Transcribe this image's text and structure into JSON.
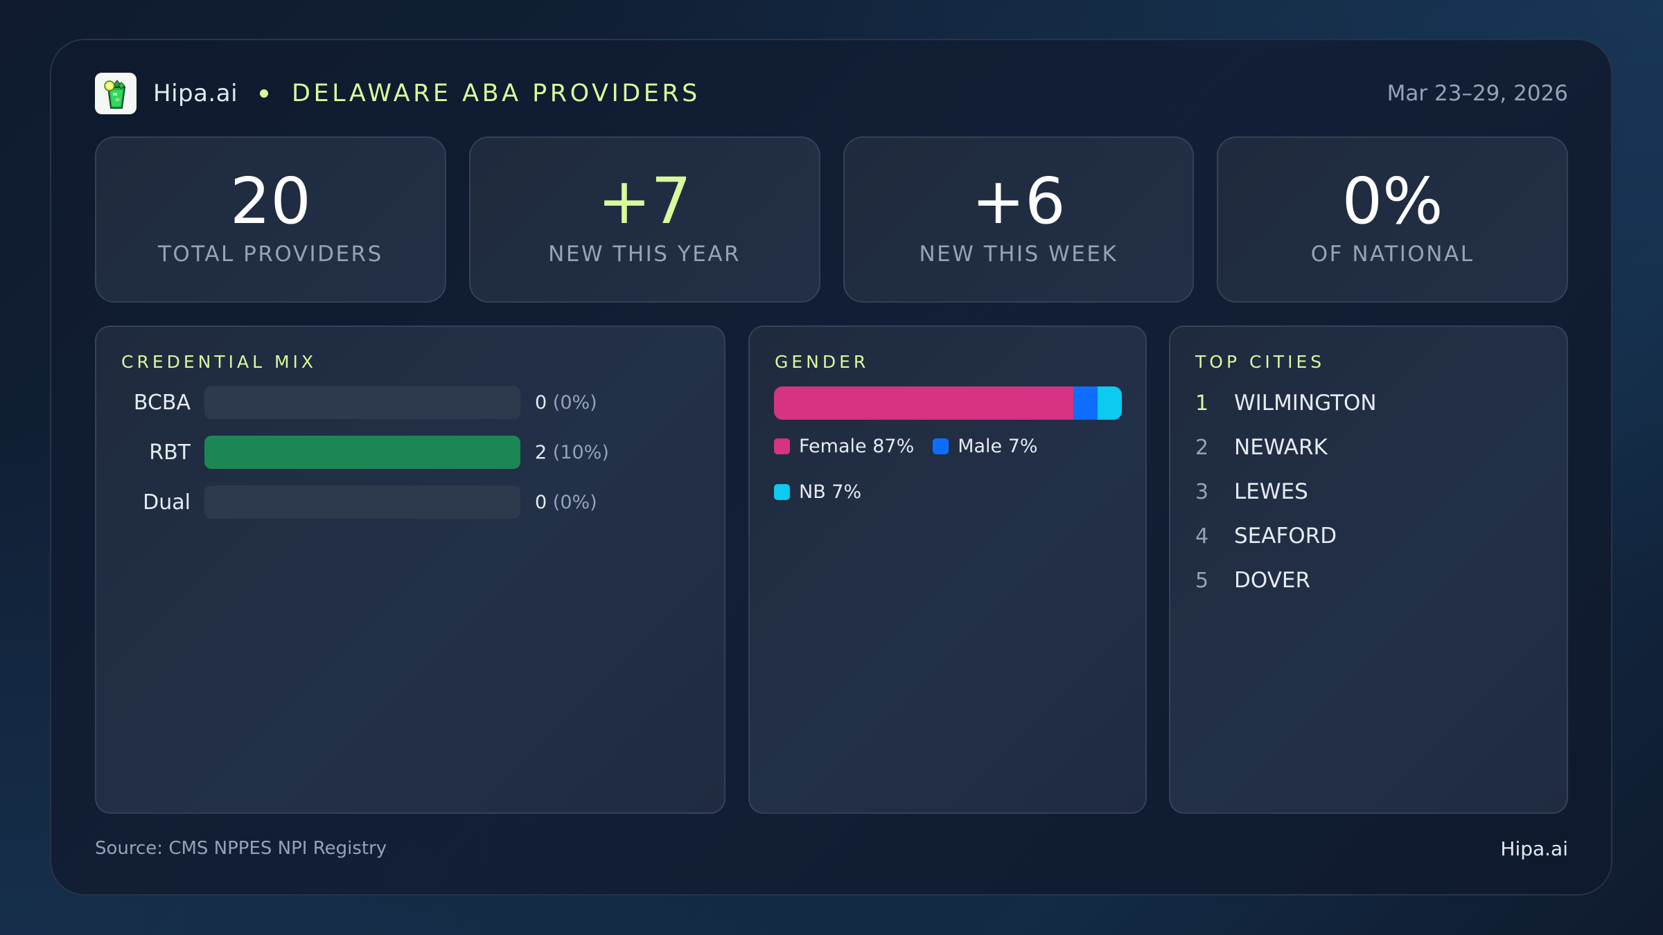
{
  "header": {
    "brand": "Hipa.ai",
    "title": "DELAWARE ABA PROVIDERS",
    "date_range": "Mar 23–29, 2026",
    "logo_icon": "mojito-drink-icon",
    "accent_color": "#d9f99d"
  },
  "stats": [
    {
      "value": "20",
      "label": "TOTAL PROVIDERS",
      "accent": false
    },
    {
      "value": "+7",
      "label": "NEW THIS YEAR",
      "accent": true
    },
    {
      "value": "+6",
      "label": "NEW THIS WEEK",
      "accent": false
    },
    {
      "value": "0%",
      "label": "OF NATIONAL",
      "accent": false
    }
  ],
  "credential_mix": {
    "title": "CREDENTIAL MIX",
    "rows": [
      {
        "label": "BCBA",
        "count": "0",
        "pct": "(0%)",
        "fill_pct": 0,
        "color": "#1b8755"
      },
      {
        "label": "RBT",
        "count": "2",
        "pct": "(10%)",
        "fill_pct": 100,
        "color": "#1b8755"
      },
      {
        "label": "Dual",
        "count": "0",
        "pct": "(0%)",
        "fill_pct": 0,
        "color": "#1b8755"
      }
    ]
  },
  "gender": {
    "title": "GENDER",
    "segments": [
      {
        "label": "Female 87%",
        "name": "Female",
        "pct": 87,
        "color": "#d63384"
      },
      {
        "label": "Male 7%",
        "name": "Male",
        "pct": 7,
        "color": "#0d6efd"
      },
      {
        "label": "NB 7%",
        "name": "NB",
        "pct": 7,
        "color": "#0dcaf0"
      }
    ]
  },
  "top_cities": {
    "title": "TOP CITIES",
    "items": [
      {
        "rank": "1",
        "name": "WILMINGTON"
      },
      {
        "rank": "2",
        "name": "NEWARK"
      },
      {
        "rank": "3",
        "name": "LEWES"
      },
      {
        "rank": "4",
        "name": "SEAFORD"
      },
      {
        "rank": "5",
        "name": "DOVER"
      }
    ]
  },
  "footer": {
    "source": "Source: CMS NPPES NPI Registry",
    "brand": "Hipa.ai"
  }
}
